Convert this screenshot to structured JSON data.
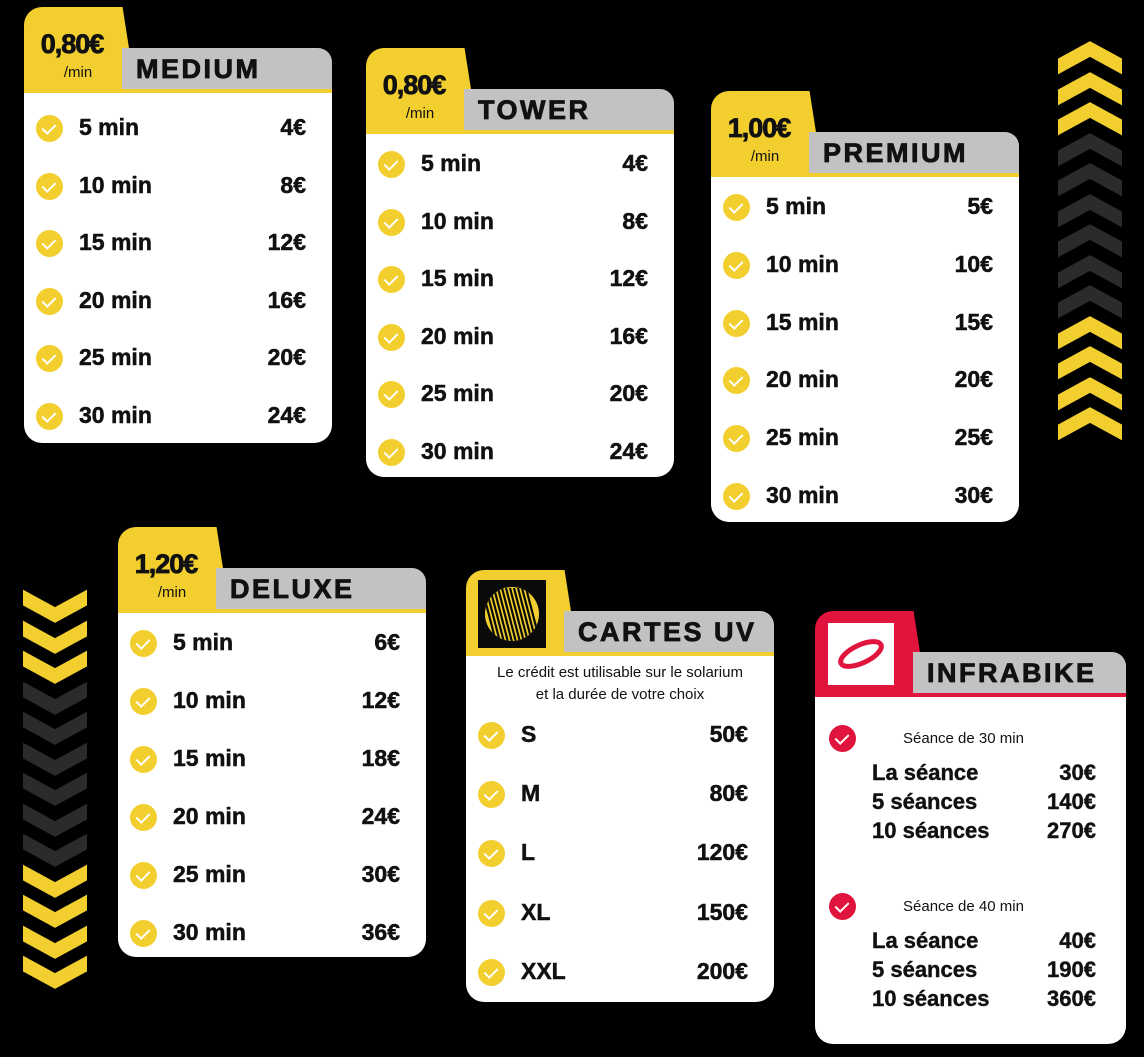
{
  "colors": {
    "accent": "#f2cf2f",
    "infrabike": "#e0143c",
    "header": "#c2c2c2",
    "background": "#000000",
    "chevron_dark": "#2b2b2b"
  },
  "cards": [
    {
      "id": "medium",
      "title": "MEDIUM",
      "rate": "0,80€",
      "unit": "/min",
      "rows": [
        [
          "5 min",
          "4€"
        ],
        [
          "10 min",
          "8€"
        ],
        [
          "15 min",
          "12€"
        ],
        [
          "20 min",
          "16€"
        ],
        [
          "25 min",
          "20€"
        ],
        [
          "30 min",
          "24€"
        ]
      ]
    },
    {
      "id": "tower",
      "title": "TOWER",
      "rate": "0,80€",
      "unit": "/min",
      "rows": [
        [
          "5 min",
          "4€"
        ],
        [
          "10 min",
          "8€"
        ],
        [
          "15 min",
          "12€"
        ],
        [
          "20 min",
          "16€"
        ],
        [
          "25 min",
          "20€"
        ],
        [
          "30 min",
          "24€"
        ]
      ]
    },
    {
      "id": "premium",
      "title": "PREMIUM",
      "rate": "1,00€",
      "unit": "/min",
      "rows": [
        [
          "5 min",
          "5€"
        ],
        [
          "10 min",
          "10€"
        ],
        [
          "15 min",
          "15€"
        ],
        [
          "20 min",
          "20€"
        ],
        [
          "25 min",
          "25€"
        ],
        [
          "30 min",
          "30€"
        ]
      ]
    },
    {
      "id": "deluxe",
      "title": "DELUXE",
      "rate": "1,20€",
      "unit": "/min",
      "rows": [
        [
          "5 min",
          "6€"
        ],
        [
          "10 min",
          "12€"
        ],
        [
          "15 min",
          "18€"
        ],
        [
          "20 min",
          "24€"
        ],
        [
          "25 min",
          "30€"
        ],
        [
          "30 min",
          "36€"
        ]
      ]
    },
    {
      "id": "cartes-uv",
      "title": "CARTES UV",
      "logo": "sun-stripes-logo",
      "note": [
        "Le crédit est utilisable sur le solarium",
        "et la durée de votre choix"
      ],
      "rows": [
        [
          "S",
          "50€"
        ],
        [
          "M",
          "80€"
        ],
        [
          "L",
          "120€"
        ],
        [
          "XL",
          "150€"
        ],
        [
          "XXL",
          "200€"
        ]
      ]
    }
  ],
  "infrabike": {
    "title": "INFRABIKE",
    "logo": "infrabike-logo",
    "sessions": [
      {
        "label": "Séance de 30 min",
        "lines": [
          [
            "La séance",
            "30€"
          ],
          [
            "5 séances",
            "140€"
          ],
          [
            "10 séances",
            "270€"
          ]
        ]
      },
      {
        "label": "Séance de 40 min",
        "lines": [
          [
            "La séance",
            "40€"
          ],
          [
            "5 séances",
            "190€"
          ],
          [
            "10 séances",
            "360€"
          ]
        ]
      }
    ]
  },
  "decor": {
    "right_chevrons": "chevron-up-icon",
    "left_chevrons": "chevron-down-icon"
  }
}
